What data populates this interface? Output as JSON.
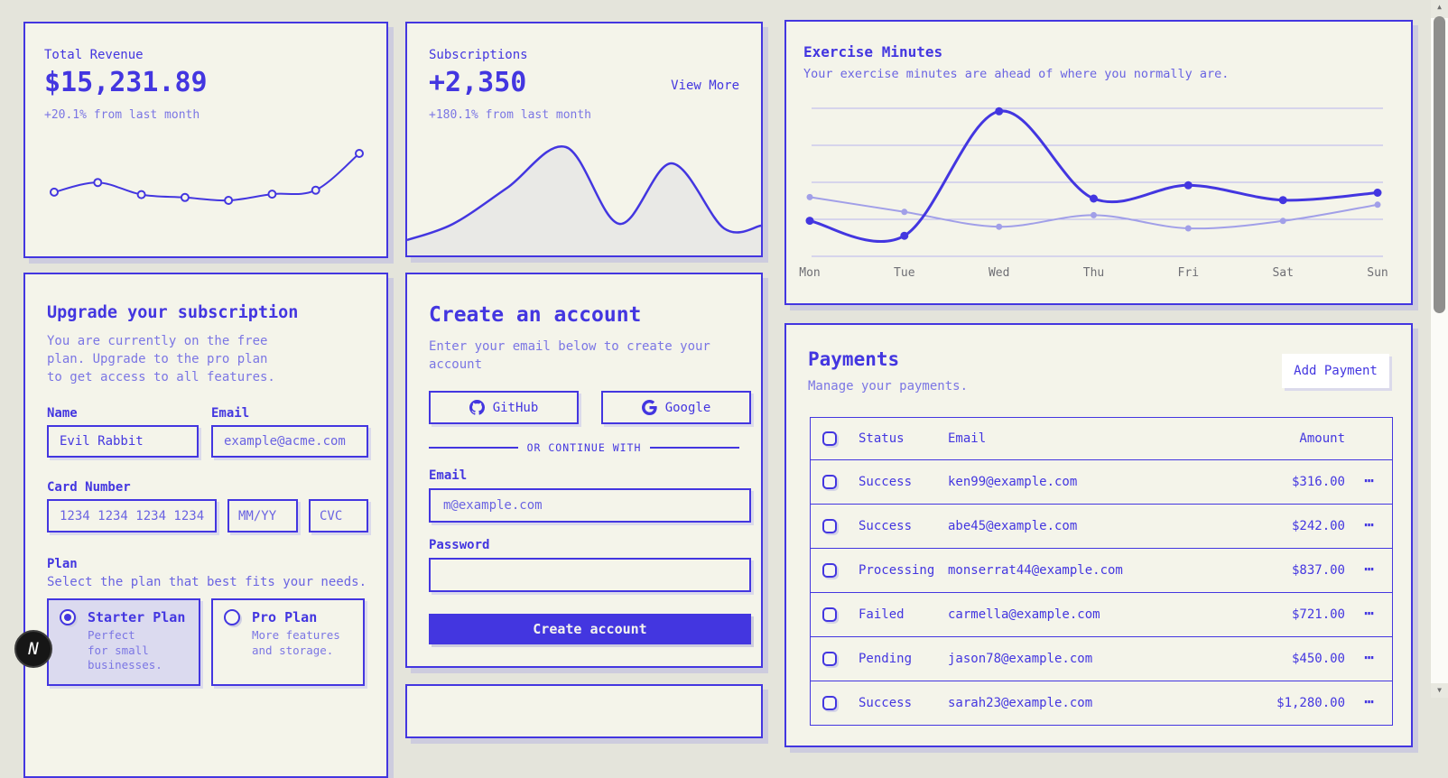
{
  "theme": {
    "primary": "#4336e0",
    "muted": "#7b76e4",
    "page_bg": "#e4e4db",
    "card_bg": "#f4f4ea",
    "area_fill": "#e9e9e6",
    "avg_line": "#a19fe8",
    "gridline": "#b7b5ee",
    "selected_plan_bg": "#dbdaef",
    "button_text": "#f5f5ee",
    "axis_label": "#6e6e74"
  },
  "cards": {
    "total_revenue": {
      "title": "Total Revenue",
      "value": "$15,231.89",
      "change": "+20.1% from last month",
      "chart_data": {
        "type": "line",
        "series": [
          {
            "name": "revenue",
            "values": [
              10400,
              14405,
              9400,
              8200,
              7000,
              9600,
              11244,
              26475
            ]
          }
        ],
        "grid": false,
        "legend": false
      }
    },
    "subscriptions": {
      "title": "Subscriptions",
      "value": "+2,350",
      "view_more": "View More",
      "change": "+180.1% from last month",
      "chart_data": {
        "type": "area",
        "values": [
          17,
          35,
          75,
          120,
          35,
          102,
          30,
          33
        ],
        "ylim": [
          0,
          135
        ],
        "grid": false,
        "legend": false
      }
    },
    "exercise": {
      "title": "Exercise Minutes",
      "description": "Your exercise minutes are ahead of where you normally are.",
      "chart_data": {
        "type": "line",
        "categories": [
          "Mon",
          "Tue",
          "Wed",
          "Thu",
          "Fri",
          "Sat",
          "Sun"
        ],
        "series": [
          {
            "name": "today",
            "values": [
              240,
              139,
              980,
              390,
              480,
              380,
              430
            ]
          },
          {
            "name": "average",
            "values": [
              400,
              300,
              200,
              278,
              189,
              239,
              349
            ]
          }
        ],
        "ylim": [
          0,
          1000
        ],
        "gridline_values": [
          0,
          250,
          500,
          750,
          1000
        ],
        "grid": true,
        "legend": false
      }
    },
    "upgrade": {
      "title": "Upgrade your subscription",
      "description": "You are currently on the free\nplan. Upgrade to the pro plan\nto get access to all features.",
      "name_label": "Name",
      "name_value": "Evil Rabbit",
      "email_label": "Email",
      "email_placeholder": "example@acme.com",
      "card_number_label": "Card Number",
      "card_number_placeholder": "1234 1234 1234 1234",
      "expiry_placeholder": "MM/YY",
      "cvc_placeholder": "CVC",
      "plan_label": "Plan",
      "plan_description": "Select the plan that best fits your needs.",
      "plans": [
        {
          "name": "Starter Plan",
          "description": "Perfect\nfor small\nbusinesses.",
          "selected": true
        },
        {
          "name": "Pro Plan",
          "description": "More features\nand storage.",
          "selected": false
        }
      ]
    },
    "create_account": {
      "title": "Create an account",
      "description": "Enter your email below to create your\naccount",
      "github_label": "GitHub",
      "google_label": "Google",
      "divider_label": "OR CONTINUE WITH",
      "email_label": "Email",
      "email_placeholder": "m@example.com",
      "password_label": "Password",
      "password_value": "",
      "submit_label": "Create account"
    },
    "payments": {
      "title": "Payments",
      "description": "Manage your payments.",
      "add_button": "Add Payment",
      "row_menu_icon": "⋯",
      "table": {
        "columns": [
          "Status",
          "Email",
          "Amount"
        ],
        "rows": [
          {
            "status": "Success",
            "email": "ken99@example.com",
            "amount": "$316.00"
          },
          {
            "status": "Success",
            "email": "abe45@example.com",
            "amount": "$242.00"
          },
          {
            "status": "Processing",
            "email": "monserrat44@example.com",
            "amount": "$837.00"
          },
          {
            "status": "Failed",
            "email": "carmella@example.com",
            "amount": "$721.00"
          },
          {
            "status": "Pending",
            "email": "jason78@example.com",
            "amount": "$450.00"
          },
          {
            "status": "Success",
            "email": "sarah23@example.com",
            "amount": "$1,280.00"
          }
        ]
      }
    }
  },
  "dev_badge": {
    "label": "N"
  }
}
